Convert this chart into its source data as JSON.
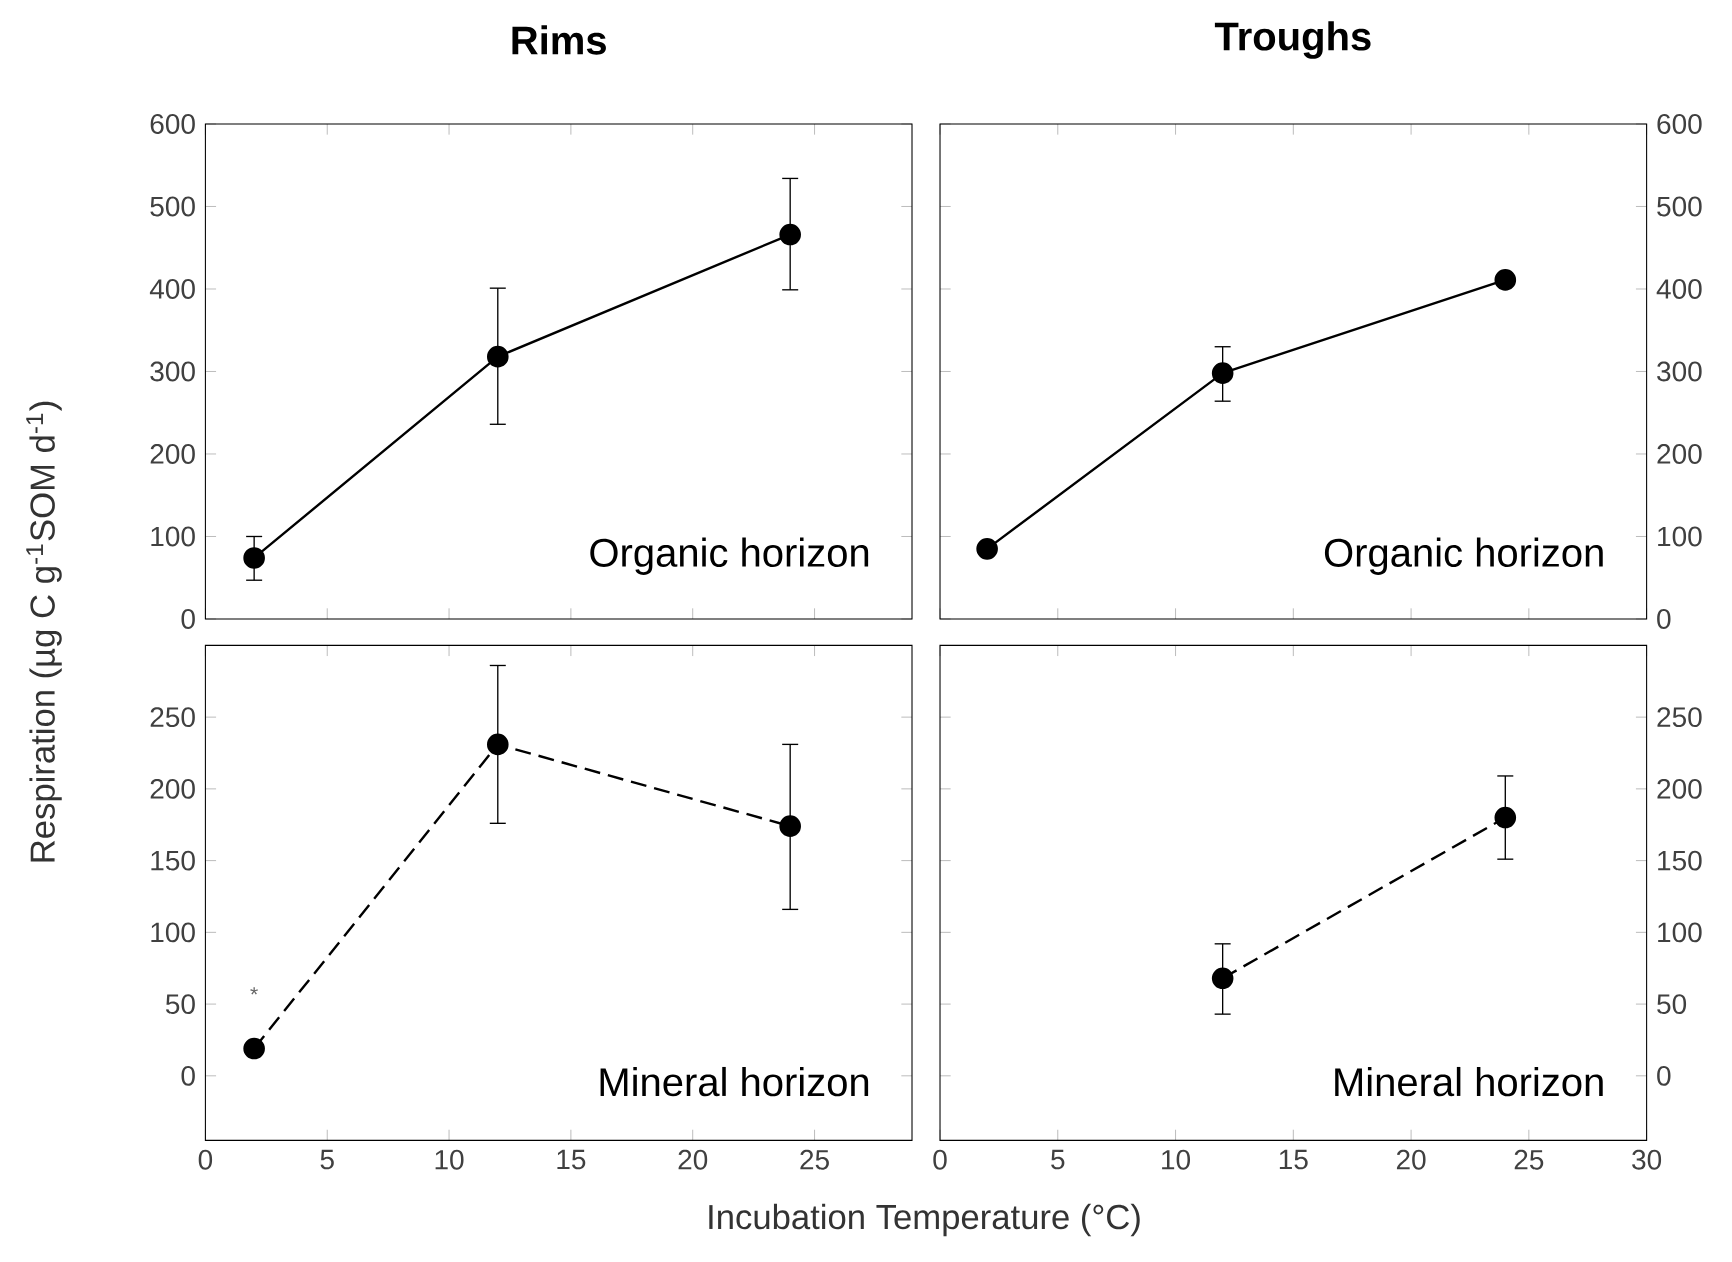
{
  "chart_data": [
    {
      "type": "line",
      "title": "Rims",
      "ylabel": "Respiration (µg C g$^{-1}$SOM d$^{-1}$)",
      "x": [
        2,
        12,
        24
      ],
      "series": [
        {
          "color": "#000000",
          "values": [
            74,
            318,
            466
          ],
          "errors": [
            [
              47,
              100
            ],
            [
              236,
              401
            ],
            [
              399,
              534
            ]
          ]
        }
      ],
      "xlim": [
        0,
        29
      ],
      "xticks": [
        0,
        5,
        10,
        15,
        20,
        25
      ],
      "ylim": [
        0,
        600
      ],
      "yticks": [
        0,
        100,
        200,
        300,
        400,
        500,
        600
      ],
      "tick_labels": "y",
      "marker": "circle",
      "line_style": "solid",
      "annotations": [
        "Organic horizon"
      ]
    },
    {
      "type": "line",
      "title": "Troughs",
      "x": [
        2,
        12,
        24
      ],
      "series": [
        {
          "color": "#000000",
          "values": [
            85,
            298,
            411
          ],
          "errors": [
            null,
            [
              264,
              330
            ],
            null
          ]
        }
      ],
      "xlim": [
        0,
        30
      ],
      "xticks": [
        0,
        5,
        10,
        15,
        20,
        25,
        30
      ],
      "ylim": [
        0,
        600
      ],
      "yticks": [
        0,
        100,
        200,
        300,
        400,
        500,
        600
      ],
      "tick_labels": "y",
      "marker": "circle",
      "line_style": "solid",
      "annotations": [
        "Organic horizon"
      ]
    },
    {
      "type": "line",
      "xlabel": "Incubation Temperature (°C)",
      "x": [
        2,
        12,
        24
      ],
      "series": [
        {
          "color": "#000000",
          "values": [
            19,
            231,
            174
          ],
          "errors": [
            null,
            [
              176,
              286
            ],
            [
              116,
              231
            ]
          ]
        }
      ],
      "xlim": [
        0,
        29
      ],
      "xticks": [
        0,
        5,
        10,
        15,
        20,
        25
      ],
      "ylim": [
        -45,
        300
      ],
      "yticks": [
        0,
        50,
        100,
        150,
        200,
        250
      ],
      "marker": "circle",
      "line_style": "dashed",
      "annotations": [
        {
          "text": "*",
          "x": 2,
          "y": 19
        },
        "Mineral horizon"
      ]
    },
    {
      "type": "line",
      "x": [
        12,
        24
      ],
      "series": [
        {
          "color": "#000000",
          "values": [
            68,
            180
          ],
          "errors": [
            [
              43,
              92
            ],
            [
              151,
              209
            ]
          ]
        }
      ],
      "xlim": [
        0,
        30
      ],
      "xticks": [
        0,
        5,
        10,
        15,
        20,
        25,
        30
      ],
      "ylim": [
        -45,
        300
      ],
      "yticks": [
        0,
        50,
        100,
        150,
        200,
        250
      ],
      "marker": "circle",
      "line_style": "dashed",
      "annotations": [
        "Mineral horizon"
      ]
    }
  ]
}
